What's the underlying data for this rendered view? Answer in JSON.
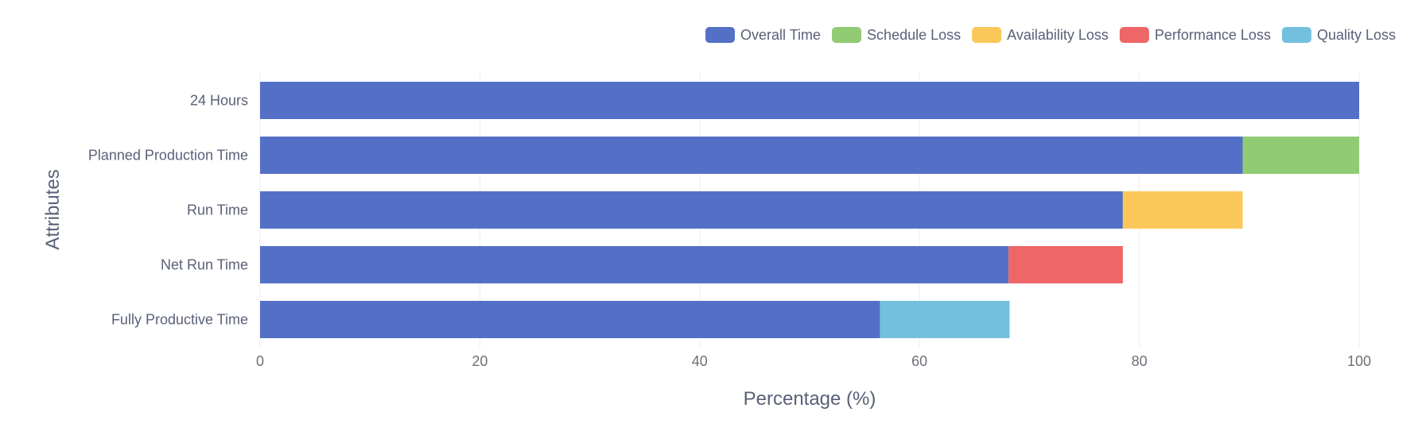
{
  "chart_data": {
    "type": "bar",
    "orientation": "horizontal",
    "stacked": true,
    "title": "",
    "xlabel": "Percentage (%)",
    "ylabel": "Attributes",
    "xlim": [
      0,
      100
    ],
    "xticks": [
      0,
      20,
      40,
      60,
      80,
      100
    ],
    "grid": true,
    "legend_position": "top-right",
    "categories": [
      "24 Hours",
      "Planned Production Time",
      "Run Time",
      "Net Run Time",
      "Fully Productive Time"
    ],
    "series": [
      {
        "name": "Overall Time",
        "color": "#5470c6",
        "values": [
          100,
          89.4,
          78.5,
          68.1,
          56.4
        ]
      },
      {
        "name": "Schedule Loss",
        "color": "#91cc75",
        "values": [
          0,
          10.6,
          0,
          0,
          0
        ]
      },
      {
        "name": "Availability Loss",
        "color": "#fac858",
        "values": [
          0,
          0,
          10.9,
          0,
          0
        ]
      },
      {
        "name": "Performance Loss",
        "color": "#ee6666",
        "values": [
          0,
          0,
          0,
          10.4,
          0
        ]
      },
      {
        "name": "Quality Loss",
        "color": "#73c0de",
        "values": [
          0,
          0,
          0,
          0,
          11.8
        ]
      }
    ]
  }
}
